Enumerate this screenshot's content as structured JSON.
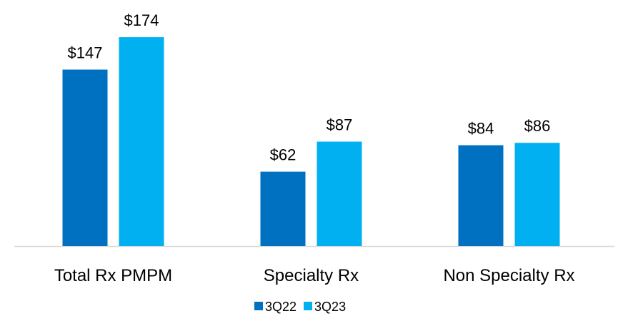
{
  "chart_data": {
    "type": "bar",
    "categories": [
      "Total Rx PMPM",
      "Specialty Rx",
      "Non Specialty Rx"
    ],
    "series": [
      {
        "name": "3Q22",
        "color": "#0070c0",
        "values": [
          147,
          62,
          84
        ],
        "value_labels": [
          "$147",
          "$62",
          "$84"
        ]
      },
      {
        "name": "3Q23",
        "color": "#00b0f0",
        "values": [
          174,
          87,
          86
        ],
        "value_labels": [
          "$174",
          "$87",
          "$86"
        ]
      }
    ],
    "ylim": [
      0,
      180
    ],
    "legend": "bottom"
  }
}
